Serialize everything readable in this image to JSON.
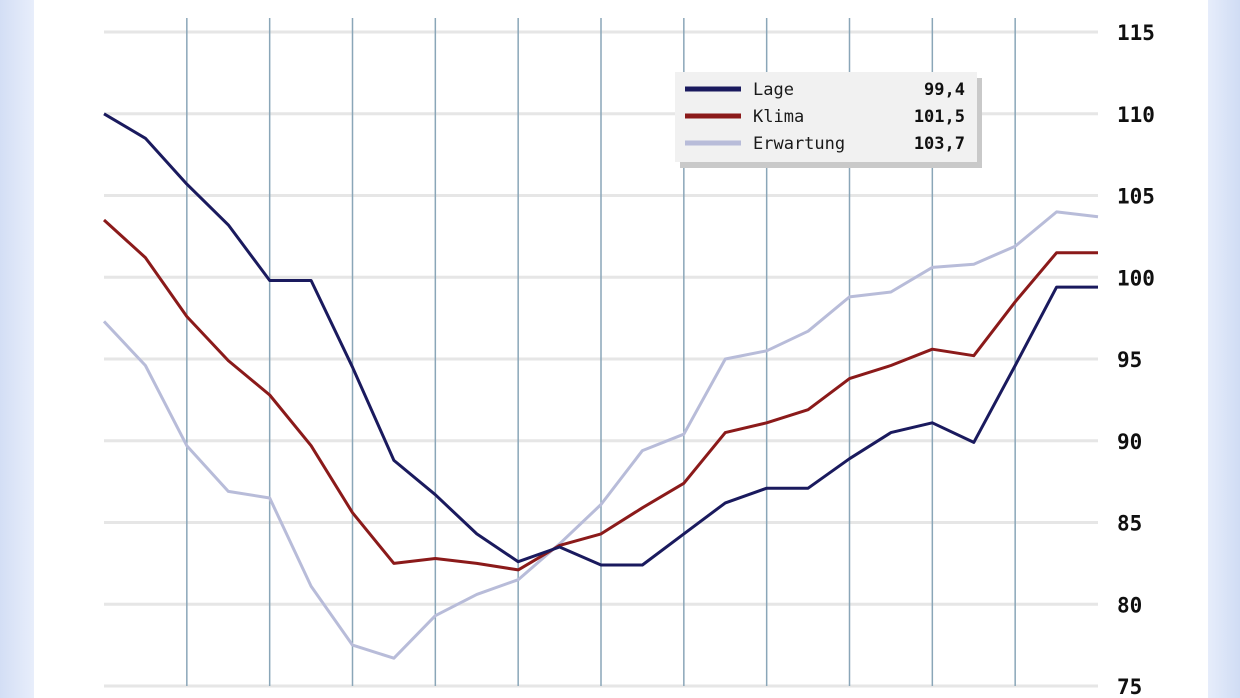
{
  "chart_data": {
    "type": "line",
    "title": "",
    "xlabel": "",
    "ylabel": "",
    "ylim": [
      75,
      115
    ],
    "y_ticks": [
      "115",
      "110",
      "105",
      "100",
      "95",
      "90",
      "85",
      "80",
      "75"
    ],
    "grid": true,
    "legend_position": "top-right",
    "x": [
      0,
      1,
      2,
      3,
      4,
      5,
      6,
      7,
      8,
      9,
      10,
      11,
      12,
      13,
      14,
      15,
      16,
      17,
      18,
      19,
      20,
      21,
      22,
      23,
      24
    ],
    "series": [
      {
        "name": "Lage",
        "legend_value": "99,4",
        "color": "#1a1a5e",
        "values": [
          110.0,
          108.5,
          105.7,
          103.2,
          99.8,
          99.8,
          94.5,
          88.8,
          86.7,
          84.3,
          82.6,
          83.5,
          82.4,
          82.4,
          84.3,
          86.2,
          87.1,
          87.1,
          88.9,
          90.5,
          91.1,
          89.9,
          94.6,
          99.4,
          99.4
        ]
      },
      {
        "name": "Klima",
        "legend_value": "101,5",
        "color": "#8b1a1a",
        "values": [
          103.5,
          101.2,
          97.6,
          94.9,
          92.8,
          89.7,
          85.6,
          82.5,
          82.8,
          82.5,
          82.1,
          83.6,
          84.3,
          85.9,
          87.4,
          90.5,
          91.1,
          91.9,
          93.8,
          94.6,
          95.6,
          95.2,
          98.5,
          101.5,
          101.5
        ]
      },
      {
        "name": "Erwartung",
        "legend_value": "103,7",
        "color": "#b8bcd9",
        "values": [
          97.3,
          94.6,
          89.7,
          86.9,
          86.5,
          81.1,
          77.5,
          76.7,
          79.3,
          80.6,
          81.5,
          83.7,
          86.1,
          89.4,
          90.4,
          95.0,
          95.5,
          96.7,
          98.8,
          99.1,
          100.6,
          100.8,
          101.9,
          104.0,
          103.7
        ]
      }
    ]
  }
}
